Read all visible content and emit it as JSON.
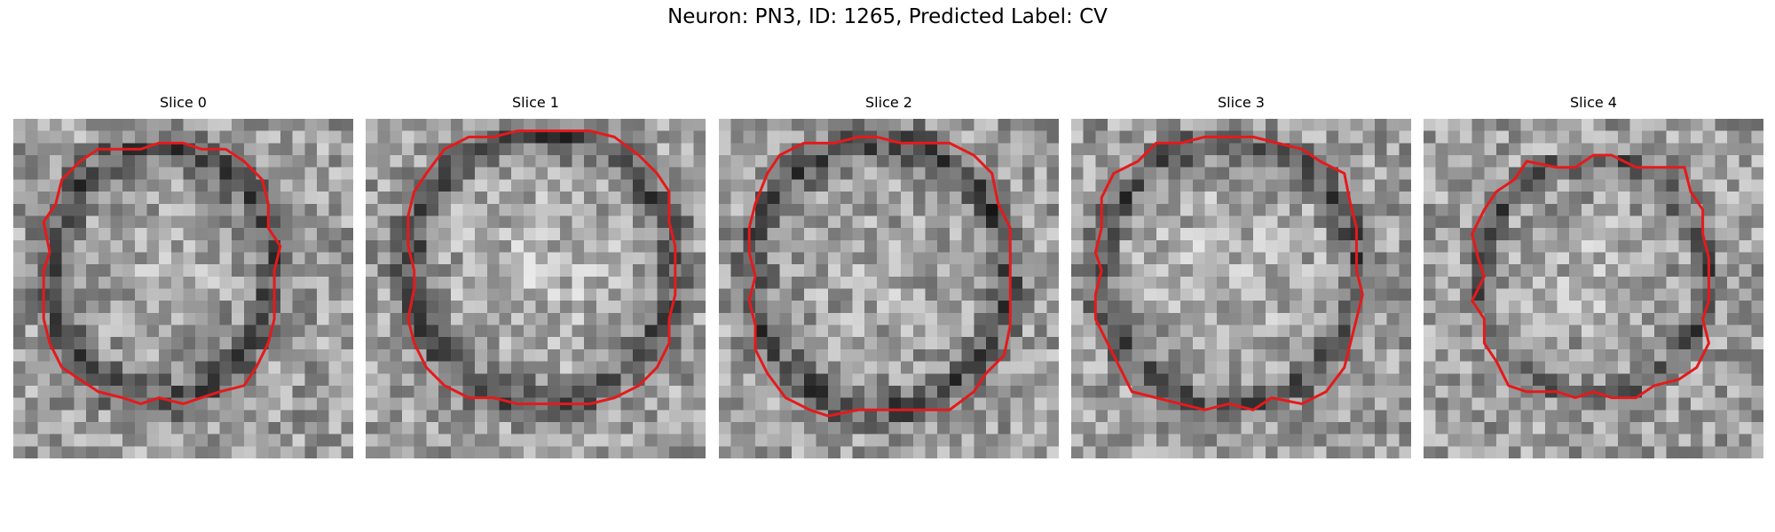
{
  "figure": {
    "title": "Neuron: PN3, ID: 1265, Predicted Label: CV"
  },
  "panels": [
    {
      "title": "Slice 0"
    },
    {
      "title": "Slice 1"
    },
    {
      "title": "Slice 2"
    },
    {
      "title": "Slice 3"
    },
    {
      "title": "Slice 4"
    }
  ],
  "colors": {
    "contour": "#e41a1c",
    "background": "#ffffff"
  }
}
